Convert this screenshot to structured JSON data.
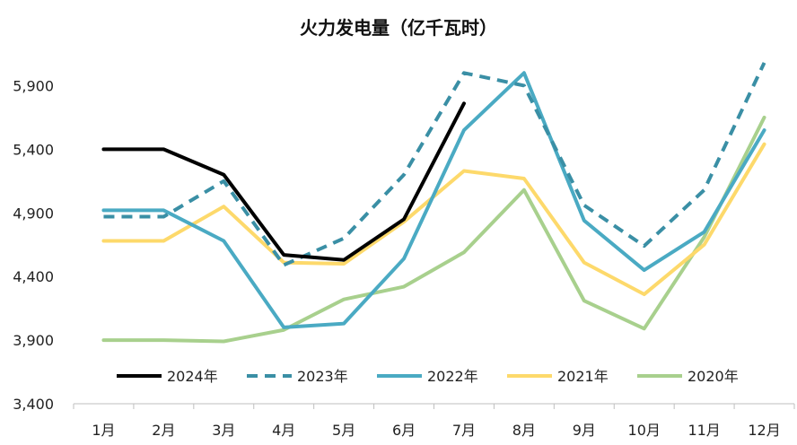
{
  "chart_data": {
    "type": "line",
    "title": "火力发电量（亿千瓦时）",
    "categories": [
      "1月",
      "2月",
      "3月",
      "4月",
      "5月",
      "6月",
      "7月",
      "8月",
      "9月",
      "10月",
      "11月",
      "12月"
    ],
    "ylim": [
      3400,
      6150
    ],
    "yticks": [
      "3,400",
      "3,900",
      "4,400",
      "4,900",
      "5,400",
      "5,900"
    ],
    "ytick_values": [
      3400,
      3900,
      4400,
      4900,
      5400,
      5900
    ],
    "grid": false,
    "legend_position": "bottom-inside",
    "series": [
      {
        "name": "2024年",
        "color": "#000000",
        "dash": "solid",
        "values": [
          5400,
          5400,
          5200,
          4570,
          4530,
          4850,
          5760,
          null,
          null,
          null,
          null,
          null
        ]
      },
      {
        "name": "2023年",
        "color": "#3a8fa5",
        "dash": "dashed",
        "values": [
          4870,
          4870,
          5150,
          4490,
          4700,
          5200,
          6000,
          5900,
          4960,
          4640,
          5080,
          6080
        ]
      },
      {
        "name": "2022年",
        "color": "#4aaac3",
        "dash": "solid",
        "values": [
          4920,
          4920,
          4680,
          4000,
          4030,
          4540,
          5550,
          6000,
          4840,
          4450,
          4750,
          5550
        ]
      },
      {
        "name": "2021年",
        "color": "#fdd96b",
        "dash": "solid",
        "values": [
          4680,
          4680,
          4950,
          4510,
          4500,
          4830,
          5230,
          5170,
          4510,
          4260,
          4650,
          5440
        ]
      },
      {
        "name": "2020年",
        "color": "#a8d08d",
        "dash": "solid",
        "values": [
          3900,
          3900,
          3890,
          3980,
          4220,
          4320,
          4590,
          5080,
          4210,
          3990,
          4710,
          5650
        ]
      }
    ]
  }
}
